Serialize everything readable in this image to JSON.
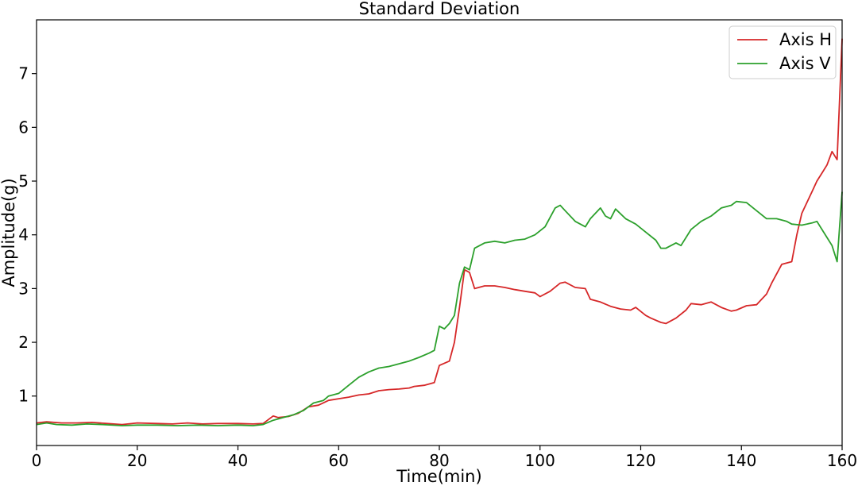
{
  "chart_data": {
    "type": "line",
    "title": "Standard Deviation",
    "xlabel": "Time(min)",
    "ylabel": "Amplitude(g)",
    "xlim": [
      0,
      160
    ],
    "ylim": [
      0.08,
      8.0
    ],
    "xticks": [
      0,
      20,
      40,
      60,
      80,
      100,
      120,
      140,
      160
    ],
    "yticks": [
      1,
      2,
      3,
      4,
      5,
      6,
      7
    ],
    "grid": false,
    "legend_position": "top-right",
    "series": [
      {
        "name": "Axis H",
        "color": "#d62728",
        "points": [
          [
            0,
            0.5
          ],
          [
            2,
            0.52
          ],
          [
            5,
            0.5
          ],
          [
            8,
            0.5
          ],
          [
            11,
            0.51
          ],
          [
            14,
            0.49
          ],
          [
            17,
            0.47
          ],
          [
            20,
            0.5
          ],
          [
            24,
            0.49
          ],
          [
            27,
            0.48
          ],
          [
            30,
            0.5
          ],
          [
            33,
            0.48
          ],
          [
            36,
            0.49
          ],
          [
            40,
            0.49
          ],
          [
            43,
            0.48
          ],
          [
            45,
            0.49
          ],
          [
            47,
            0.63
          ],
          [
            48,
            0.6
          ],
          [
            50,
            0.62
          ],
          [
            52,
            0.68
          ],
          [
            54,
            0.8
          ],
          [
            56,
            0.83
          ],
          [
            58,
            0.92
          ],
          [
            60,
            0.95
          ],
          [
            62,
            0.98
          ],
          [
            64,
            1.02
          ],
          [
            66,
            1.04
          ],
          [
            68,
            1.1
          ],
          [
            70,
            1.12
          ],
          [
            72,
            1.13
          ],
          [
            74,
            1.15
          ],
          [
            75,
            1.18
          ],
          [
            77,
            1.2
          ],
          [
            79,
            1.25
          ],
          [
            80,
            1.57
          ],
          [
            82,
            1.65
          ],
          [
            83,
            2.0
          ],
          [
            84,
            2.65
          ],
          [
            85,
            3.35
          ],
          [
            86,
            3.3
          ],
          [
            87,
            3.0
          ],
          [
            89,
            3.05
          ],
          [
            91,
            3.05
          ],
          [
            93,
            3.02
          ],
          [
            95,
            2.98
          ],
          [
            97,
            2.95
          ],
          [
            99,
            2.92
          ],
          [
            100,
            2.85
          ],
          [
            102,
            2.95
          ],
          [
            104,
            3.1
          ],
          [
            105,
            3.12
          ],
          [
            107,
            3.02
          ],
          [
            109,
            3.0
          ],
          [
            110,
            2.8
          ],
          [
            112,
            2.75
          ],
          [
            114,
            2.67
          ],
          [
            116,
            2.62
          ],
          [
            118,
            2.6
          ],
          [
            119,
            2.65
          ],
          [
            121,
            2.5
          ],
          [
            122,
            2.45
          ],
          [
            124,
            2.37
          ],
          [
            125,
            2.35
          ],
          [
            127,
            2.45
          ],
          [
            129,
            2.6
          ],
          [
            130,
            2.72
          ],
          [
            132,
            2.7
          ],
          [
            134,
            2.75
          ],
          [
            136,
            2.65
          ],
          [
            138,
            2.58
          ],
          [
            139,
            2.6
          ],
          [
            141,
            2.68
          ],
          [
            143,
            2.7
          ],
          [
            145,
            2.9
          ],
          [
            146,
            3.1
          ],
          [
            148,
            3.45
          ],
          [
            150,
            3.5
          ],
          [
            151,
            4.0
          ],
          [
            152,
            4.4
          ],
          [
            154,
            4.8
          ],
          [
            155,
            5.0
          ],
          [
            156,
            5.15
          ],
          [
            157,
            5.3
          ],
          [
            158,
            5.55
          ],
          [
            159,
            5.4
          ],
          [
            160,
            7.65
          ]
        ]
      },
      {
        "name": "Axis V",
        "color": "#2ca02c",
        "points": [
          [
            0,
            0.47
          ],
          [
            2,
            0.5
          ],
          [
            4,
            0.47
          ],
          [
            7,
            0.46
          ],
          [
            10,
            0.48
          ],
          [
            13,
            0.47
          ],
          [
            17,
            0.45
          ],
          [
            20,
            0.46
          ],
          [
            24,
            0.46
          ],
          [
            28,
            0.45
          ],
          [
            32,
            0.46
          ],
          [
            36,
            0.45
          ],
          [
            40,
            0.46
          ],
          [
            43,
            0.45
          ],
          [
            45,
            0.47
          ],
          [
            47,
            0.55
          ],
          [
            49,
            0.6
          ],
          [
            51,
            0.65
          ],
          [
            53,
            0.73
          ],
          [
            55,
            0.87
          ],
          [
            57,
            0.92
          ],
          [
            58,
            1.0
          ],
          [
            60,
            1.05
          ],
          [
            62,
            1.2
          ],
          [
            64,
            1.35
          ],
          [
            66,
            1.45
          ],
          [
            68,
            1.52
          ],
          [
            70,
            1.55
          ],
          [
            72,
            1.6
          ],
          [
            74,
            1.65
          ],
          [
            76,
            1.72
          ],
          [
            78,
            1.8
          ],
          [
            79,
            1.85
          ],
          [
            80,
            2.3
          ],
          [
            81,
            2.25
          ],
          [
            82,
            2.35
          ],
          [
            83,
            2.5
          ],
          [
            84,
            3.1
          ],
          [
            85,
            3.4
          ],
          [
            86,
            3.35
          ],
          [
            87,
            3.75
          ],
          [
            89,
            3.85
          ],
          [
            91,
            3.88
          ],
          [
            93,
            3.85
          ],
          [
            95,
            3.9
          ],
          [
            97,
            3.92
          ],
          [
            99,
            4.0
          ],
          [
            101,
            4.15
          ],
          [
            103,
            4.5
          ],
          [
            104,
            4.55
          ],
          [
            105,
            4.45
          ],
          [
            107,
            4.25
          ],
          [
            109,
            4.15
          ],
          [
            110,
            4.3
          ],
          [
            112,
            4.5
          ],
          [
            113,
            4.35
          ],
          [
            114,
            4.3
          ],
          [
            115,
            4.48
          ],
          [
            117,
            4.3
          ],
          [
            119,
            4.2
          ],
          [
            121,
            4.05
          ],
          [
            123,
            3.9
          ],
          [
            124,
            3.75
          ],
          [
            125,
            3.75
          ],
          [
            127,
            3.85
          ],
          [
            128,
            3.8
          ],
          [
            130,
            4.1
          ],
          [
            132,
            4.25
          ],
          [
            134,
            4.35
          ],
          [
            136,
            4.5
          ],
          [
            138,
            4.55
          ],
          [
            139,
            4.62
          ],
          [
            141,
            4.6
          ],
          [
            143,
            4.45
          ],
          [
            145,
            4.3
          ],
          [
            147,
            4.3
          ],
          [
            149,
            4.25
          ],
          [
            150,
            4.2
          ],
          [
            152,
            4.18
          ],
          [
            154,
            4.22
          ],
          [
            155,
            4.25
          ],
          [
            157,
            3.95
          ],
          [
            158,
            3.8
          ],
          [
            159,
            3.5
          ],
          [
            160,
            4.8
          ]
        ]
      }
    ]
  }
}
